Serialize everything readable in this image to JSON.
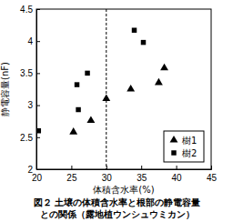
{
  "chart_data": {
    "type": "scatter",
    "title": [
      "図２ 土壌の体積含水率と根部の静電容量",
      "との関係（露地植ウンシュウミカン）"
    ],
    "x_label": "体積含水率(%)",
    "y_label": "静電容量(nF)",
    "xlim": [
      20,
      45
    ],
    "xticks": [
      20,
      25,
      30,
      35,
      40,
      45
    ],
    "ylim": [
      2,
      4.5
    ],
    "yticks": [
      2,
      2.5,
      3,
      3.5,
      4,
      4.5
    ],
    "grid": false,
    "legend": "lower right",
    "vlines": [
      30
    ],
    "series": [
      {
        "name": "樹1",
        "color": "#000000",
        "marker": "triangle",
        "x": [
          25.3,
          27.8,
          30,
          33.5,
          37.5,
          38.3
        ],
        "values": [
          2.58,
          2.76,
          3.1,
          3.25,
          3.35,
          3.58
        ]
      },
      {
        "name": "樹2",
        "color": "#000000",
        "marker": "square",
        "x": [
          20.3,
          25.8,
          26,
          27.3,
          34,
          35.3
        ],
        "values": [
          2.6,
          3.32,
          2.93,
          3.5,
          4.17,
          3.98
        ]
      }
    ]
  }
}
